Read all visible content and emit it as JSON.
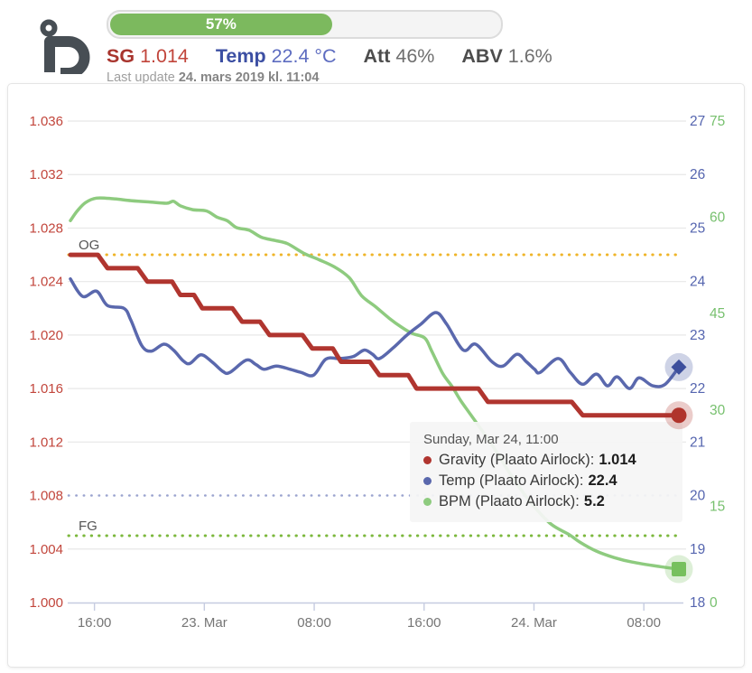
{
  "header": {
    "progress": {
      "percent": 57,
      "label": "57%",
      "fill_color": "#7cb95e"
    },
    "stats": [
      {
        "id": "sg",
        "label": "SG",
        "value": "1.014"
      },
      {
        "id": "temp",
        "label": "Temp",
        "value": "22.4 °C"
      },
      {
        "id": "att",
        "label": "Att",
        "value": "46%"
      },
      {
        "id": "abv",
        "label": "ABV",
        "value": "1.6%"
      }
    ],
    "last_update": {
      "prefix": "Last update ",
      "value": "24. mars 2019 kl. 11:04"
    }
  },
  "chart_data": {
    "type": "line",
    "x_unit": "hours",
    "x_range": [
      0,
      44.3
    ],
    "x_ticks": [
      {
        "t": 1.75,
        "label": "16:00"
      },
      {
        "t": 9.75,
        "label": "23. Mar"
      },
      {
        "t": 17.75,
        "label": "08:00"
      },
      {
        "t": 25.75,
        "label": "16:00"
      },
      {
        "t": 33.75,
        "label": "24. Mar"
      },
      {
        "t": 41.75,
        "label": "08:00"
      }
    ],
    "axes": {
      "sg": {
        "side": "left",
        "color": "#c2463c",
        "range": [
          1.0,
          1.036
        ],
        "decimals": 3,
        "ticks": [
          1.0,
          1.004,
          1.008,
          1.012,
          1.016,
          1.02,
          1.024,
          1.028,
          1.032,
          1.036
        ]
      },
      "temp": {
        "side": "right",
        "color": "#5565af",
        "range": [
          18,
          27
        ],
        "ticks": [
          18,
          19,
          20,
          21,
          22,
          23,
          24,
          25,
          26,
          27
        ]
      },
      "bpm": {
        "side": "right-outer",
        "color": "#77c06e",
        "range": [
          0,
          75
        ],
        "ticks": [
          0,
          15,
          30,
          45,
          60,
          75
        ]
      }
    },
    "grid": {
      "on": true,
      "dotted_value": 1.008,
      "color": "#e7e7e7"
    },
    "reference_lines": [
      {
        "label": "OG",
        "axis": "sg",
        "value": 1.026,
        "color": "#efb52a"
      },
      {
        "label": "FG",
        "axis": "sg",
        "value": 1.005,
        "color": "#7cb83d"
      },
      {
        "label": "",
        "axis": "sg",
        "value": 1.008,
        "color": "#9ba4cf"
      }
    ],
    "series": [
      {
        "name": "BPM (Plaato Airlock)",
        "axis": "bpm",
        "color": "#8ecb7f",
        "width": 3.5,
        "marker": "square",
        "marker_color": "#77c05e",
        "smooth": true,
        "points": [
          [
            0,
            59.5
          ],
          [
            0.5,
            61.0
          ],
          [
            1.1,
            62.3
          ],
          [
            1.9,
            63.0
          ],
          [
            3.1,
            62.9
          ],
          [
            4.4,
            62.6
          ],
          [
            5.7,
            62.4
          ],
          [
            7.0,
            62.2
          ],
          [
            7.5,
            62.5
          ],
          [
            8.0,
            61.8
          ],
          [
            8.9,
            61.2
          ],
          [
            9.9,
            61.0
          ],
          [
            10.7,
            60.0
          ],
          [
            11.4,
            59.5
          ],
          [
            12.1,
            58.4
          ],
          [
            13.0,
            58.0
          ],
          [
            13.9,
            56.9
          ],
          [
            14.9,
            56.4
          ],
          [
            15.8,
            55.9
          ],
          [
            17.0,
            54.4
          ],
          [
            18.1,
            53.4
          ],
          [
            19.2,
            52.3
          ],
          [
            20.3,
            50.6
          ],
          [
            21.2,
            47.8
          ],
          [
            22.2,
            46.1
          ],
          [
            23.2,
            44.3
          ],
          [
            24.1,
            42.9
          ],
          [
            24.9,
            41.9
          ],
          [
            25.8,
            41.2
          ],
          [
            26.3,
            39.2
          ],
          [
            27.1,
            35.7
          ],
          [
            27.8,
            33.6
          ],
          [
            28.4,
            31.5
          ],
          [
            29.1,
            29.4
          ],
          [
            29.9,
            27.0
          ],
          [
            30.9,
            23.9
          ],
          [
            31.7,
            21.1
          ],
          [
            32.7,
            17.9
          ],
          [
            33.7,
            15.1
          ],
          [
            35.0,
            12.2
          ],
          [
            36.3,
            10.6
          ],
          [
            37.1,
            9.4
          ],
          [
            38.3,
            8.0
          ],
          [
            39.6,
            7.0
          ],
          [
            40.9,
            6.3
          ],
          [
            42.9,
            5.6
          ],
          [
            44.3,
            5.2
          ]
        ]
      },
      {
        "name": "Temp (Plaato Airlock)",
        "axis": "temp",
        "color": "#5a68ad",
        "width": 3.5,
        "marker": "diamond",
        "marker_color": "#3d4f9c",
        "smooth": true,
        "points": [
          [
            0,
            24.05
          ],
          [
            0.9,
            23.72
          ],
          [
            1.9,
            23.82
          ],
          [
            2.7,
            23.55
          ],
          [
            3.9,
            23.5
          ],
          [
            4.4,
            23.28
          ],
          [
            5.2,
            22.8
          ],
          [
            5.9,
            22.7
          ],
          [
            6.8,
            22.83
          ],
          [
            7.5,
            22.72
          ],
          [
            8.2,
            22.52
          ],
          [
            8.7,
            22.47
          ],
          [
            9.5,
            22.63
          ],
          [
            10.3,
            22.5
          ],
          [
            11.1,
            22.32
          ],
          [
            11.6,
            22.3
          ],
          [
            12.8,
            22.53
          ],
          [
            13.5,
            22.45
          ],
          [
            14.1,
            22.36
          ],
          [
            15.0,
            22.42
          ],
          [
            16.0,
            22.36
          ],
          [
            16.8,
            22.3
          ],
          [
            17.7,
            22.25
          ],
          [
            18.6,
            22.55
          ],
          [
            19.6,
            22.56
          ],
          [
            20.6,
            22.6
          ],
          [
            21.4,
            22.72
          ],
          [
            22.0,
            22.64
          ],
          [
            22.5,
            22.56
          ],
          [
            23.5,
            22.76
          ],
          [
            24.5,
            23.0
          ],
          [
            25.5,
            23.2
          ],
          [
            26.6,
            23.42
          ],
          [
            27.4,
            23.2
          ],
          [
            28.6,
            22.72
          ],
          [
            29.5,
            22.83
          ],
          [
            30.7,
            22.5
          ],
          [
            31.5,
            22.42
          ],
          [
            32.5,
            22.64
          ],
          [
            33.2,
            22.5
          ],
          [
            33.8,
            22.36
          ],
          [
            34.2,
            22.3
          ],
          [
            35.5,
            22.56
          ],
          [
            36.4,
            22.3
          ],
          [
            37.3,
            22.08
          ],
          [
            38.3,
            22.27
          ],
          [
            39.1,
            22.05
          ],
          [
            39.8,
            22.22
          ],
          [
            40.7,
            22.0
          ],
          [
            41.4,
            22.2
          ],
          [
            42.4,
            22.05
          ],
          [
            43.3,
            22.08
          ],
          [
            44.3,
            22.4
          ]
        ]
      },
      {
        "name": "Gravity (Plaato Airlock)",
        "axis": "sg",
        "color": "#b0352f",
        "width": 5,
        "marker": "circle",
        "marker_color": "#b0342c",
        "smooth": false,
        "points": [
          [
            0,
            1.026
          ],
          [
            2.0,
            1.026
          ],
          [
            2.7,
            1.025
          ],
          [
            4.9,
            1.025
          ],
          [
            5.6,
            1.024
          ],
          [
            7.4,
            1.024
          ],
          [
            8.0,
            1.023
          ],
          [
            9.0,
            1.023
          ],
          [
            9.6,
            1.022
          ],
          [
            11.8,
            1.022
          ],
          [
            12.5,
            1.021
          ],
          [
            13.8,
            1.021
          ],
          [
            14.5,
            1.02
          ],
          [
            16.9,
            1.02
          ],
          [
            17.6,
            1.019
          ],
          [
            19.1,
            1.019
          ],
          [
            19.7,
            1.018
          ],
          [
            21.8,
            1.018
          ],
          [
            22.5,
            1.017
          ],
          [
            24.6,
            1.017
          ],
          [
            25.2,
            1.016
          ],
          [
            29.7,
            1.016
          ],
          [
            30.4,
            1.015
          ],
          [
            36.5,
            1.015
          ],
          [
            37.3,
            1.014
          ],
          [
            44.3,
            1.014
          ]
        ]
      }
    ]
  },
  "tooltip": {
    "title": "Sunday, Mar 24, 11:00",
    "items": [
      {
        "label": "Gravity (Plaato Airlock):",
        "value": "1.014",
        "color": "#b0352f"
      },
      {
        "label": "Temp (Plaato Airlock):",
        "value": "22.4",
        "color": "#5a68ad"
      },
      {
        "label": "BPM (Plaato Airlock):",
        "value": "5.2",
        "color": "#8ecb7f"
      }
    ]
  }
}
